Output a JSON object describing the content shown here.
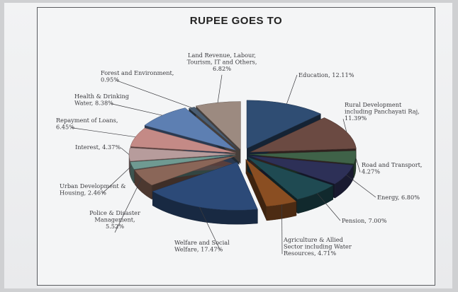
{
  "chart_data": {
    "type": "pie",
    "title": "RUPEE GOES TO",
    "slices": [
      {
        "label": [
          "Education, 12.11%"
        ],
        "value": 12.11,
        "color": "#2f4d73"
      },
      {
        "label": [
          "Rural Development",
          "including Panchayati Raj,",
          "11.39%"
        ],
        "value": 11.39,
        "color": "#6b4a42"
      },
      {
        "label": [
          "Road and Transport,",
          "4.27%"
        ],
        "value": 4.27,
        "color": "#3f6248"
      },
      {
        "label": [
          "Energy, 6.80%"
        ],
        "value": 6.8,
        "color": "#2d3057"
      },
      {
        "label": [
          "Pension, 7.00%"
        ],
        "value": 7.0,
        "color": "#1f4a52"
      },
      {
        "label": [
          "Agriculture & Allied",
          "Sector including Water",
          "Resources, 4.71%"
        ],
        "value": 4.71,
        "color": "#8a4e22"
      },
      {
        "label": [
          "Welfare and Social",
          "Welfare, 17.47%"
        ],
        "value": 17.47,
        "color": "#2c4a78"
      },
      {
        "label": [
          "Police & Disaster",
          "Management,",
          "5.52%"
        ],
        "value": 5.52,
        "color": "#8a6658"
      },
      {
        "label": [
          "Urban Development &",
          "Housing, 2.46%"
        ],
        "value": 2.46,
        "color": "#6f9a92"
      },
      {
        "label": [
          "Interest, 4.37%"
        ],
        "value": 4.37,
        "color": "#b79c9c"
      },
      {
        "label": [
          "Repayment of Loans,",
          "6.45%"
        ],
        "value": 6.45,
        "color": "#c48a86"
      },
      {
        "label": [
          "Health & Drinking",
          "Water, 8.38%"
        ],
        "value": 8.38,
        "color": "#5d7fb2"
      },
      {
        "label": [
          "Forest and Environment,",
          "0.95%"
        ],
        "value": 0.95,
        "color": "#4a5d72"
      },
      {
        "label": [
          "Land Revenue, Labour,",
          "Tourism, IT and Others,",
          "6.82%"
        ],
        "value": 6.82,
        "color": "#9c8a80"
      }
    ]
  }
}
